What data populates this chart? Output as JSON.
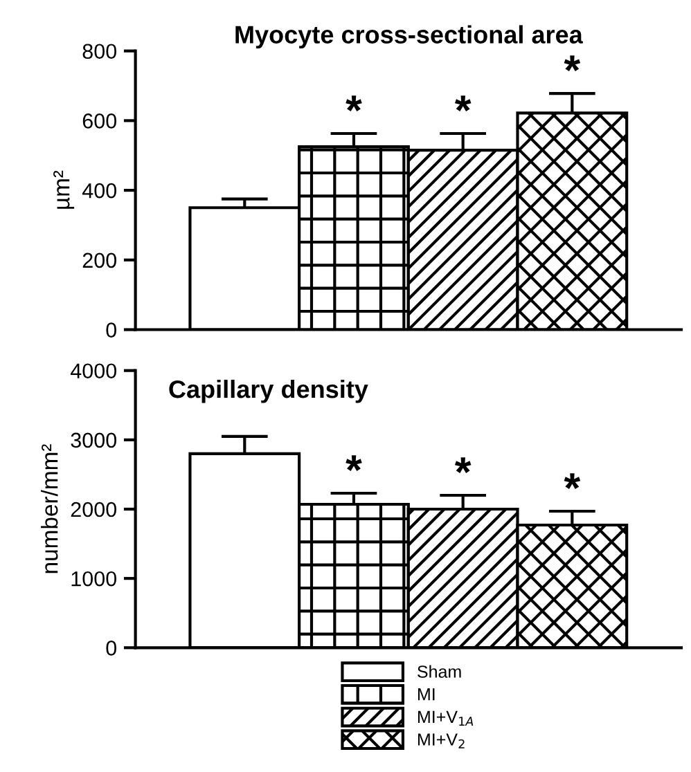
{
  "chart_data": [
    {
      "type": "bar",
      "title": "Myocyte cross-sectional area",
      "ylabel": "µm²",
      "categories": [
        null
      ],
      "ylim": [
        0,
        800
      ],
      "yticks": [
        0,
        200,
        400,
        600,
        800
      ],
      "grid": false,
      "series": [
        {
          "color": "#ffffff",
          "values": [
            350
          ],
          "errors": [
            25
          ]
        },
        {
          "color": "#000000",
          "values": [
            525
          ],
          "errors": [
            38
          ]
        },
        {
          "color": "#000000",
          "values": [
            515
          ],
          "errors": [
            48
          ]
        },
        {
          "color": "#000000",
          "values": [
            622
          ],
          "errors": [
            56
          ]
        }
      ],
      "annotations": [
        {
          "text": "*",
          "y": 563
        },
        {
          "text": "*",
          "y": 563
        },
        {
          "text": "*",
          "y": 678
        }
      ]
    },
    {
      "type": "bar",
      "title": "Capillary density",
      "ylabel": "number/mm²",
      "categories": [
        null
      ],
      "ylim": [
        0,
        4000
      ],
      "yticks": [
        0,
        1000,
        2000,
        3000,
        4000
      ],
      "grid": false,
      "legend": "bottom",
      "series": [
        {
          "name": "Sham",
          "color": "#ffffff",
          "values": [
            2800
          ],
          "errors": [
            250
          ]
        },
        {
          "name": "MI",
          "color": "#000000",
          "values": [
            2070
          ],
          "errors": [
            160
          ]
        },
        {
          "name": "MI+V$_{1A}$",
          "color": "#000000",
          "values": [
            2000
          ],
          "errors": [
            200
          ]
        },
        {
          "name": "MI+V$_{2}$",
          "color": "#000000",
          "values": [
            1770
          ],
          "errors": [
            200
          ]
        }
      ],
      "annotations": [
        {
          "text": "*",
          "y": 2230
        },
        {
          "text": "*",
          "y": 2200
        },
        {
          "text": "*",
          "y": 1970
        }
      ]
    }
  ]
}
